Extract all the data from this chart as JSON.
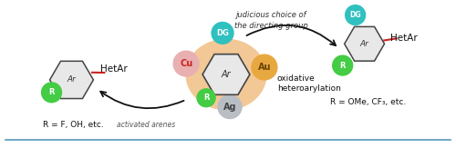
{
  "center_circle_color": "#f2c896",
  "cu_color": "#e8b0b0",
  "au_color": "#e8a840",
  "ag_color": "#b8bec4",
  "dg_color": "#30c0c0",
  "r_color": "#44cc44",
  "hex_face": "#e8e8e8",
  "hex_edge": "#444444",
  "arrow_color": "#111111",
  "text_color": "#111111",
  "label_judicious": "judicious choice of\nthe directing group",
  "label_oxidative": "oxidative\nheteroarylation",
  "label_activated": "activated arenes",
  "label_r_left": "R = F, OH, etc.",
  "label_r_right": "R = OMe, CF₃, etc.",
  "label_hetAr": "HetAr",
  "label_Ar": "Ar",
  "label_DG": "DG",
  "label_R": "R",
  "label_Cu": "Cu",
  "label_Au": "Au",
  "label_Ag": "Ag",
  "bottom_line_color": "#5599bb",
  "fig_width": 5.0,
  "fig_height": 1.63
}
